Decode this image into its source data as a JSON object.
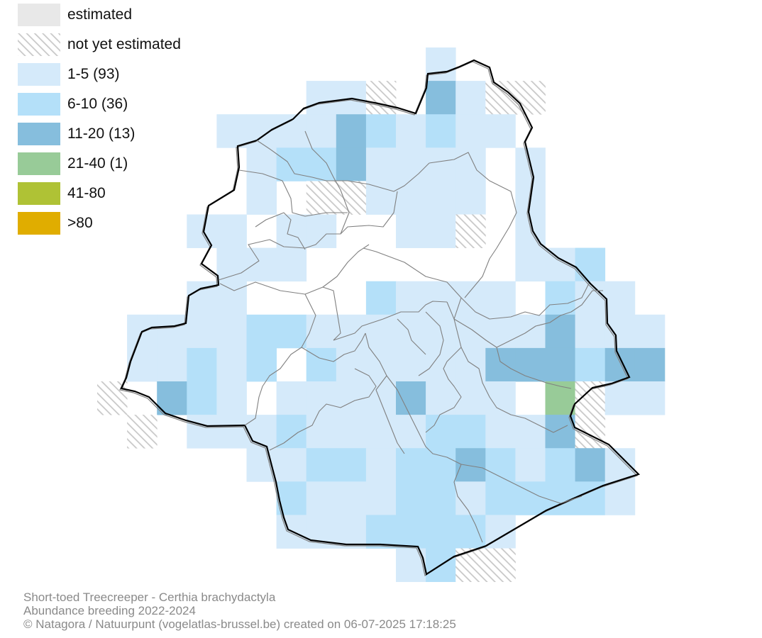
{
  "legend": {
    "estimated": "estimated",
    "not_estimated": "not yet estimated",
    "classes": [
      {
        "label": "1-5 (93)",
        "color": "#d5eafa"
      },
      {
        "label": "6-10 (36)",
        "color": "#b4e0f9"
      },
      {
        "label": "11-20 (13)",
        "color": "#86bedd"
      },
      {
        "label": "21-40 (1)",
        "color": "#98cb98"
      },
      {
        "label": "41-80",
        "color": "#afc235"
      },
      {
        "label": ">80",
        "color": "#e0ad00"
      }
    ],
    "estimated_color": "#e8e8e8",
    "hatch_color": "#c8c8c8"
  },
  "caption": {
    "species": "Short-toed Treecreeper - Certhia brachydactyla",
    "dataset": "Abundance breeding 2022-2024",
    "credit": "© Natagora / Natuurpunt (vogelatlas-brussel.be) created on 06-07-2025 17:18:25"
  },
  "colors": {
    "region_outline": "#000000",
    "municipality_outline": "#808080"
  }
}
